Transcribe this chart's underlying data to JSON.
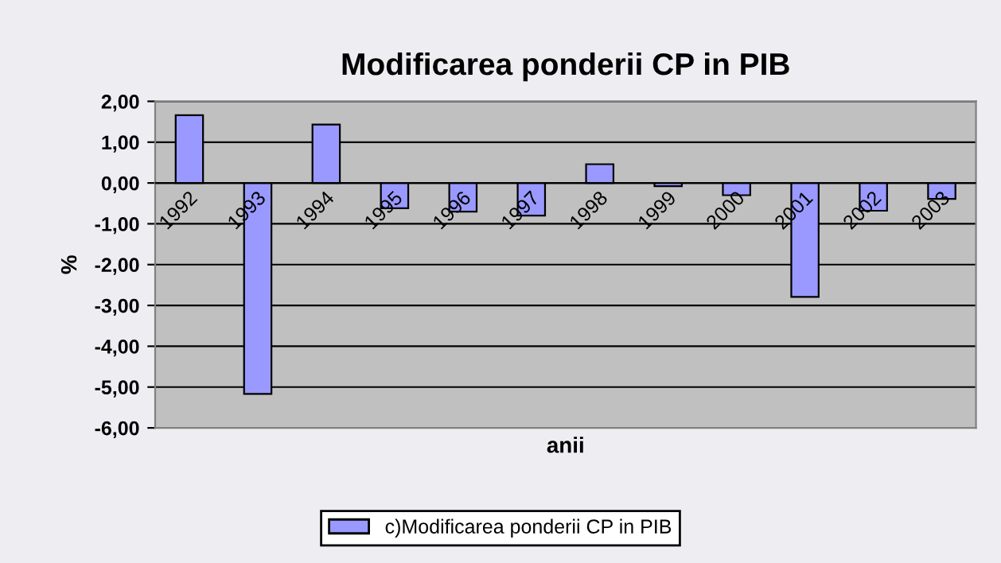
{
  "chart_data": {
    "type": "bar",
    "title": "Modificarea ponderii CP in PIB",
    "xlabel": "anii",
    "ylabel": "%",
    "categories": [
      "1992",
      "1993",
      "1994",
      "1995",
      "1996",
      "1997",
      "1998",
      "1999",
      "2000",
      "2001",
      "2002",
      "2003"
    ],
    "series": [
      {
        "name": "c)Modificarea ponderii CP in PIB",
        "color": "#9999ff",
        "values": [
          1.66,
          -5.17,
          1.43,
          -0.62,
          -0.7,
          -0.8,
          0.46,
          -0.08,
          -0.3,
          -2.79,
          -0.68,
          -0.39
        ]
      }
    ],
    "ylim": [
      -6,
      2
    ],
    "yticks": [
      {
        "value": 2,
        "label": "2,00"
      },
      {
        "value": 1,
        "label": "1,00"
      },
      {
        "value": 0,
        "label": "0,00"
      },
      {
        "value": -1,
        "label": "-1,00"
      },
      {
        "value": -2,
        "label": "-2,00"
      },
      {
        "value": -3,
        "label": "-3,00"
      },
      {
        "value": -4,
        "label": "-4,00"
      },
      {
        "value": -5,
        "label": "-5,00"
      },
      {
        "value": -6,
        "label": "-6,00"
      }
    ],
    "grid": "y",
    "legend": "bottom"
  }
}
